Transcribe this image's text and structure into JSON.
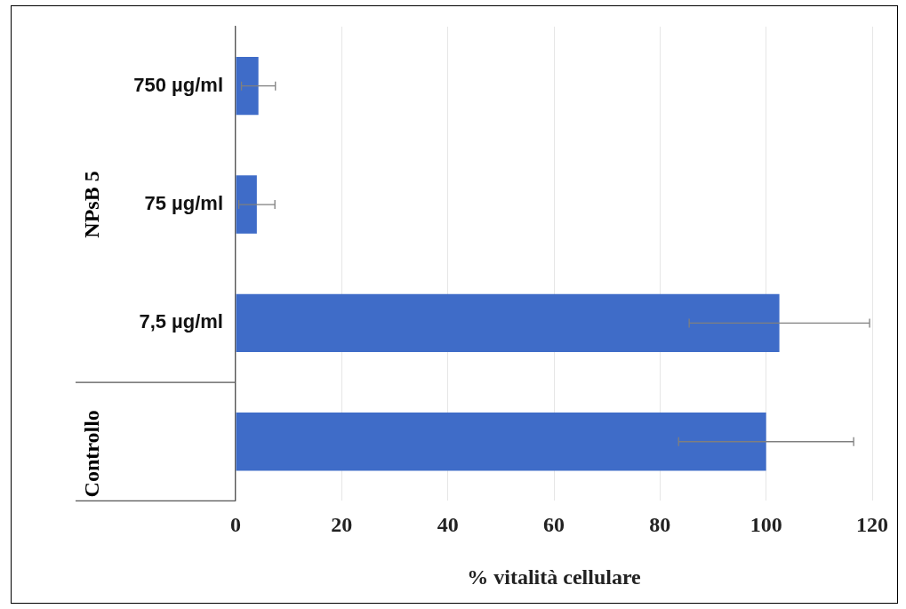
{
  "chart_data": {
    "type": "bar",
    "orientation": "horizontal",
    "xlabel": "% vitalità cellulare",
    "categories": [
      "750 µg/ml",
      "75 µg/ml",
      "7,5 µg/ml",
      null
    ],
    "values": [
      4.3,
      4,
      102.5,
      100
    ],
    "errors": [
      3.2,
      3.4,
      17,
      16.5
    ],
    "color": "#3f6cc8",
    "xlim": [
      0,
      120
    ],
    "xticks": [
      0,
      20,
      40,
      60,
      80,
      100,
      120
    ],
    "grid": "x",
    "legend": false,
    "annotations": [
      "NPsB 5",
      "Controllo"
    ]
  }
}
